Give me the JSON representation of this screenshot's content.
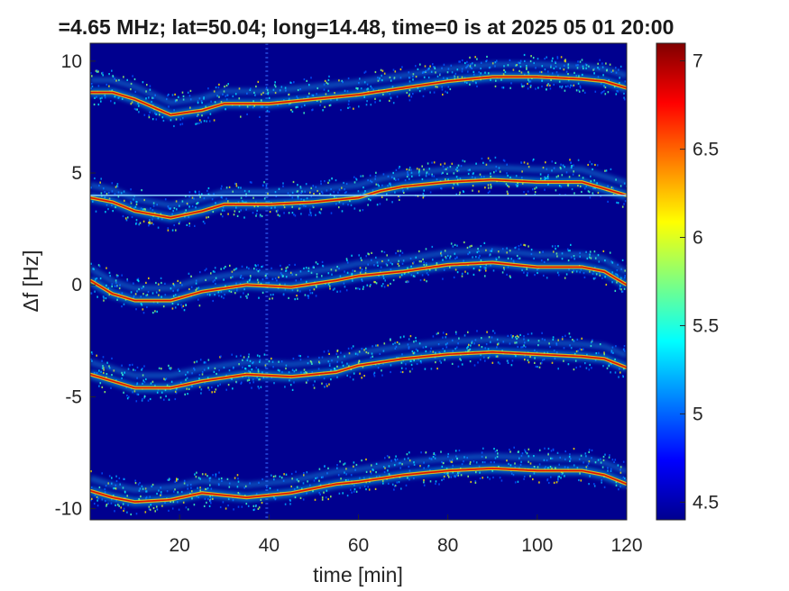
{
  "chart_data": {
    "type": "heatmap",
    "title": "=4.65 MHz;  lat=50.04; long=14.48, time=0 is at 2025 05 01 20:00",
    "xlabel": "time [min]",
    "ylabel": "Δf [Hz]",
    "xlim": [
      0,
      120
    ],
    "ylim": [
      -10.5,
      10.8
    ],
    "xticks": [
      20,
      40,
      60,
      80,
      100,
      120
    ],
    "yticks": [
      -10,
      -5,
      0,
      5,
      10
    ],
    "ytick_labels": [
      "-10",
      "-5",
      "0",
      "5",
      "10"
    ],
    "colormap": "jet",
    "clim": [
      4.4,
      7.1
    ],
    "colorbar_ticks": [
      4.5,
      5,
      5.5,
      6,
      6.5,
      7
    ],
    "colorbar_tick_labels": [
      "4.5",
      "5",
      "5.5",
      "6",
      "6.5",
      "7"
    ],
    "background_color": "#00008f",
    "reference_line": {
      "y": 4.0,
      "color": "#8fd8ff"
    },
    "vertical_artifact": {
      "x": 39.5
    },
    "traces": [
      {
        "name": "",
        "points": [
          [
            0,
            8.6
          ],
          [
            5,
            8.6
          ],
          [
            10,
            8.3
          ],
          [
            18,
            7.6
          ],
          [
            25,
            7.8
          ],
          [
            30,
            8.1
          ],
          [
            40,
            8.1
          ],
          [
            50,
            8.3
          ],
          [
            60,
            8.5
          ],
          [
            70,
            8.8
          ],
          [
            80,
            9.1
          ],
          [
            90,
            9.3
          ],
          [
            100,
            9.3
          ],
          [
            110,
            9.2
          ],
          [
            115,
            9.1
          ],
          [
            120,
            8.8
          ]
        ]
      },
      {
        "name": "",
        "points": [
          [
            0,
            3.9
          ],
          [
            5,
            3.7
          ],
          [
            10,
            3.3
          ],
          [
            18,
            3.0
          ],
          [
            25,
            3.3
          ],
          [
            30,
            3.6
          ],
          [
            40,
            3.6
          ],
          [
            50,
            3.7
          ],
          [
            60,
            3.9
          ],
          [
            65,
            4.2
          ],
          [
            70,
            4.4
          ],
          [
            80,
            4.6
          ],
          [
            90,
            4.7
          ],
          [
            100,
            4.6
          ],
          [
            110,
            4.6
          ],
          [
            115,
            4.3
          ],
          [
            120,
            4.0
          ]
        ]
      },
      {
        "name": "",
        "points": [
          [
            0,
            0.2
          ],
          [
            5,
            -0.4
          ],
          [
            10,
            -0.7
          ],
          [
            18,
            -0.7
          ],
          [
            25,
            -0.3
          ],
          [
            35,
            0.0
          ],
          [
            45,
            -0.1
          ],
          [
            55,
            0.2
          ],
          [
            60,
            0.4
          ],
          [
            70,
            0.6
          ],
          [
            80,
            0.9
          ],
          [
            90,
            1.0
          ],
          [
            100,
            0.8
          ],
          [
            110,
            0.8
          ],
          [
            115,
            0.6
          ],
          [
            120,
            0.0
          ]
        ]
      },
      {
        "name": "",
        "points": [
          [
            0,
            -4.0
          ],
          [
            5,
            -4.3
          ],
          [
            10,
            -4.6
          ],
          [
            18,
            -4.6
          ],
          [
            25,
            -4.3
          ],
          [
            35,
            -4.0
          ],
          [
            45,
            -4.1
          ],
          [
            55,
            -3.9
          ],
          [
            60,
            -3.6
          ],
          [
            70,
            -3.3
          ],
          [
            80,
            -3.1
          ],
          [
            90,
            -3.0
          ],
          [
            100,
            -3.1
          ],
          [
            110,
            -3.2
          ],
          [
            115,
            -3.3
          ],
          [
            120,
            -3.7
          ]
        ]
      },
      {
        "name": "",
        "points": [
          [
            0,
            -9.2
          ],
          [
            5,
            -9.5
          ],
          [
            10,
            -9.7
          ],
          [
            18,
            -9.6
          ],
          [
            25,
            -9.3
          ],
          [
            35,
            -9.5
          ],
          [
            45,
            -9.3
          ],
          [
            55,
            -8.9
          ],
          [
            60,
            -8.8
          ],
          [
            70,
            -8.5
          ],
          [
            80,
            -8.3
          ],
          [
            90,
            -8.2
          ],
          [
            100,
            -8.3
          ],
          [
            110,
            -8.3
          ],
          [
            115,
            -8.5
          ],
          [
            120,
            -8.9
          ]
        ]
      }
    ]
  }
}
